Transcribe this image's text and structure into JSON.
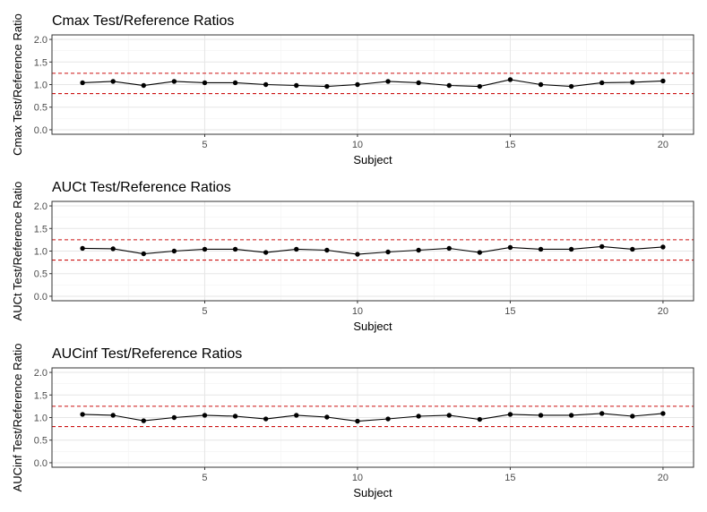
{
  "chart_data": [
    {
      "type": "line",
      "title": "Cmax Test/Reference Ratios",
      "xlabel": "Subject",
      "ylabel": "Cmax Test/Reference Ratio",
      "x": [
        1,
        2,
        3,
        4,
        5,
        6,
        7,
        8,
        9,
        10,
        11,
        12,
        13,
        14,
        15,
        16,
        17,
        18,
        19,
        20
      ],
      "values": [
        1.04,
        1.07,
        0.98,
        1.07,
        1.04,
        1.04,
        1.0,
        0.98,
        0.96,
        1.0,
        1.07,
        1.04,
        0.98,
        0.96,
        1.11,
        1.0,
        0.96,
        1.04,
        1.05,
        1.08
      ],
      "xlim": [
        0.0,
        21.0
      ],
      "ylim": [
        -0.1,
        2.1
      ],
      "xticks": [
        5,
        10,
        15,
        20
      ],
      "yticks": [
        0.0,
        0.5,
        1.0,
        1.5,
        2.0
      ],
      "ytick_labels": [
        "0.0",
        "0.5",
        "1.0",
        "1.5",
        "2.0"
      ],
      "reference_lines": [
        0.8,
        1.25
      ],
      "grid": true
    },
    {
      "type": "line",
      "title": "AUCt Test/Reference Ratios",
      "xlabel": "Subject",
      "ylabel": "AUCt Test/Reference Ratio",
      "x": [
        1,
        2,
        3,
        4,
        5,
        6,
        7,
        8,
        9,
        10,
        11,
        12,
        13,
        14,
        15,
        16,
        17,
        18,
        19,
        20
      ],
      "values": [
        1.06,
        1.05,
        0.94,
        1.0,
        1.04,
        1.04,
        0.97,
        1.04,
        1.02,
        0.93,
        0.98,
        1.02,
        1.06,
        0.97,
        1.08,
        1.04,
        1.04,
        1.1,
        1.04,
        1.09
      ],
      "xlim": [
        0.0,
        21.0
      ],
      "ylim": [
        -0.1,
        2.1
      ],
      "xticks": [
        5,
        10,
        15,
        20
      ],
      "yticks": [
        0.0,
        0.5,
        1.0,
        1.5,
        2.0
      ],
      "ytick_labels": [
        "0.0",
        "0.5",
        "1.0",
        "1.5",
        "2.0"
      ],
      "reference_lines": [
        0.8,
        1.25
      ],
      "grid": true
    },
    {
      "type": "line",
      "title": "AUCinf Test/Reference Ratios",
      "xlabel": "Subject",
      "ylabel": "AUCinf Test/Reference Ratio",
      "x": [
        1,
        2,
        3,
        4,
        5,
        6,
        7,
        8,
        9,
        10,
        11,
        12,
        13,
        14,
        15,
        16,
        17,
        18,
        19,
        20
      ],
      "values": [
        1.07,
        1.05,
        0.93,
        1.0,
        1.05,
        1.03,
        0.97,
        1.05,
        1.01,
        0.92,
        0.97,
        1.03,
        1.05,
        0.96,
        1.07,
        1.05,
        1.05,
        1.09,
        1.03,
        1.09
      ],
      "xlim": [
        0.0,
        21.0
      ],
      "ylim": [
        -0.1,
        2.1
      ],
      "xticks": [
        5,
        10,
        15,
        20
      ],
      "yticks": [
        0.0,
        0.5,
        1.0,
        1.5,
        2.0
      ],
      "ytick_labels": [
        "0.0",
        "0.5",
        "1.0",
        "1.5",
        "2.0"
      ],
      "reference_lines": [
        0.8,
        1.25
      ],
      "grid": true
    }
  ],
  "colors": {
    "series": "#000000",
    "reference_line": "#cc1111",
    "grid_major": "#e6e6e6",
    "grid_minor": "#f2f2f2",
    "panel_border": "#333333",
    "tick_text": "#4d4d4d",
    "title_text": "#000000"
  }
}
